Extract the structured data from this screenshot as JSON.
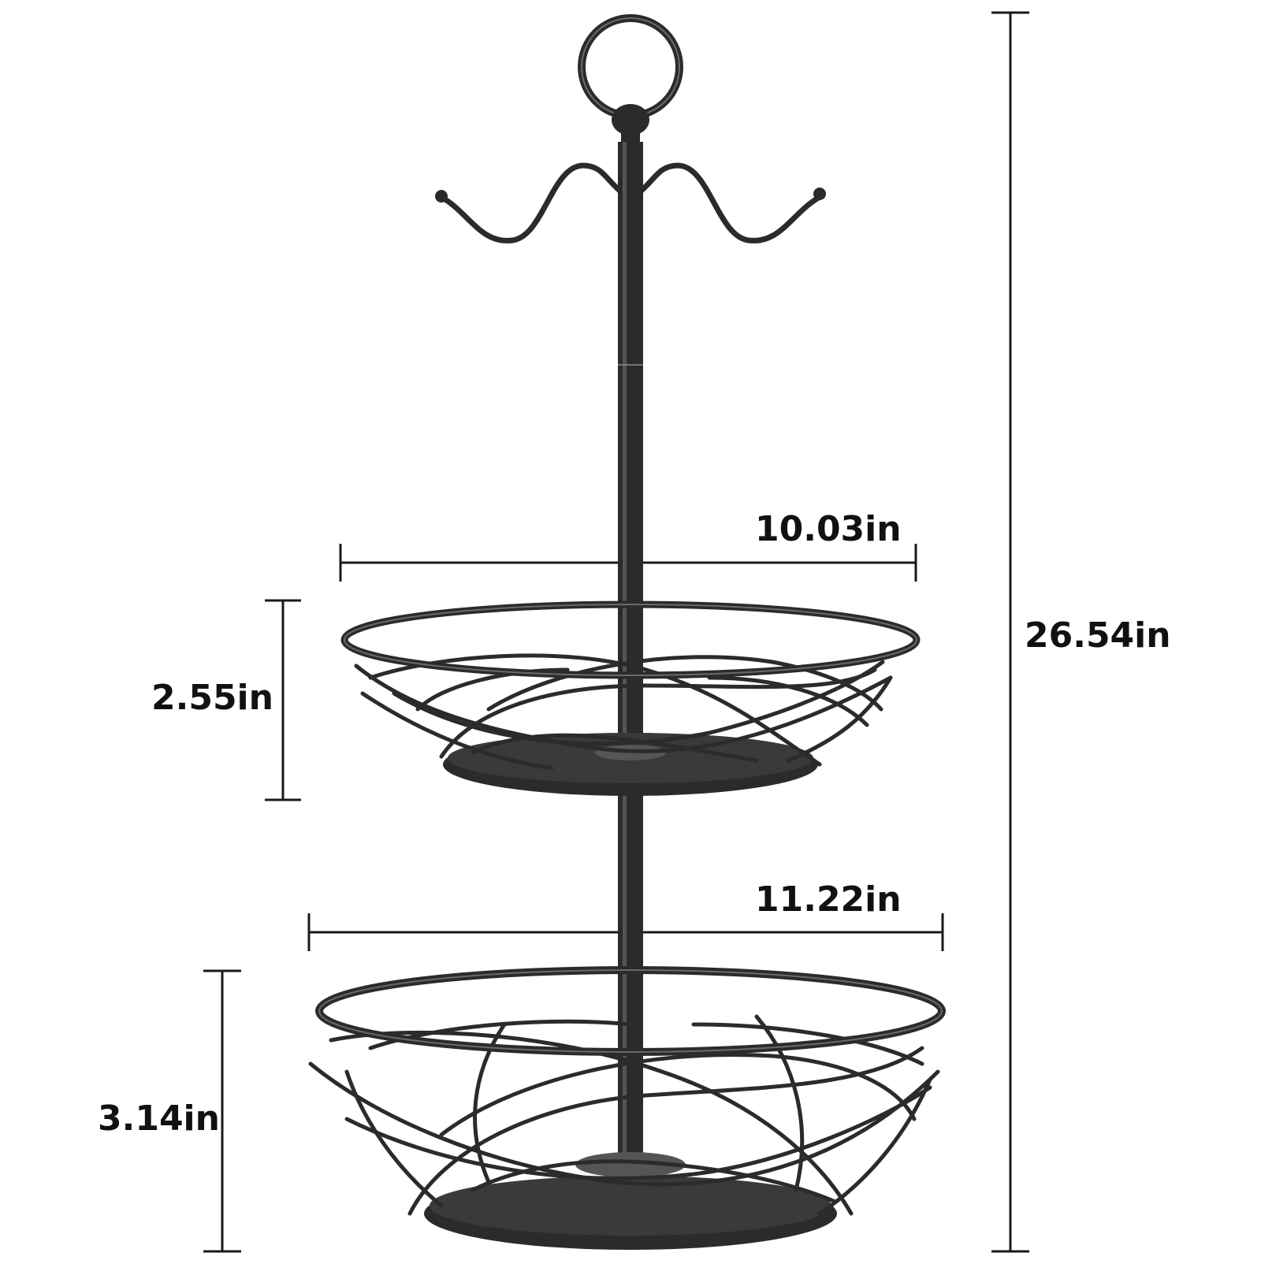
{
  "product": {
    "description_labels": {
      "upper_basket_width": "10.03in",
      "upper_basket_height": "2.55in",
      "lower_basket_width": "11.22in",
      "lower_basket_height": "3.14in",
      "total_height": "26.54in"
    }
  },
  "colors": {
    "background": "#ffffff",
    "dimension_line": "#1a1a1a",
    "metal": "#2b2b2b",
    "metal_highlight": "#6a6a6a",
    "label_text": "#111111"
  }
}
